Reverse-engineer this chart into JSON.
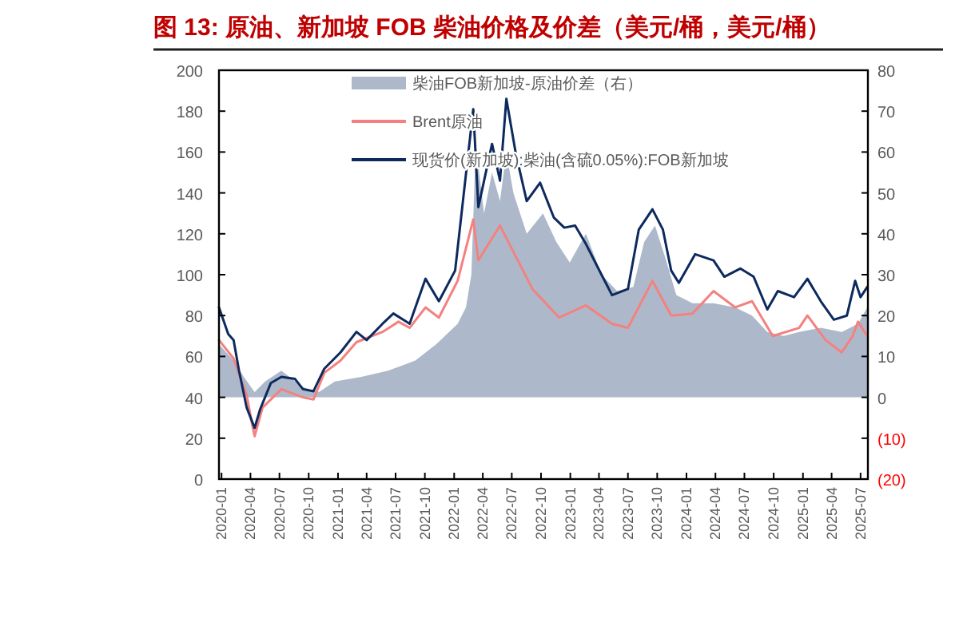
{
  "chart_data": {
    "type": "line",
    "title": "图 13: 原油、新加坡 FOB 柴油价格及价差（美元/桶，美元/桶）",
    "xlim": [
      "2019-12-24",
      "2025-07-24"
    ],
    "xticks": [
      "2020-01",
      "2020-04",
      "2020-07",
      "2020-10",
      "2021-01",
      "2021-04",
      "2021-07",
      "2021-10",
      "2022-01",
      "2022-04",
      "2022-07",
      "2022-10",
      "2023-01",
      "2023-04",
      "2023-07",
      "2023-10",
      "2024-01",
      "2024-04",
      "2024-07",
      "2024-10",
      "2025-01",
      "2025-04",
      "2025-07"
    ],
    "ylim": [
      0,
      200
    ],
    "yticks": [
      0,
      20,
      40,
      60,
      80,
      100,
      120,
      140,
      160,
      180,
      200
    ],
    "y2lim": [
      -20,
      80
    ],
    "y2ticks": [
      {
        "value": -20,
        "label": "(20)"
      },
      {
        "value": -10,
        "label": "(10)"
      },
      0,
      10,
      20,
      30,
      40,
      50,
      60,
      70,
      80
    ],
    "legend": "top",
    "grid": false,
    "series": [
      {
        "name": "柴油FOB新加坡-原油价差（右）",
        "type": "area",
        "axis": "y2",
        "color": "#adb9ca",
        "x": [
          "2019-12-24",
          "2020-02-08",
          "2020-03-11",
          "2020-04-14",
          "2020-05-17",
          "2020-07-07",
          "2020-09-13",
          "2020-11-02",
          "2020-12-22",
          "2021-03-15",
          "2021-06-07",
          "2021-09-01",
          "2021-11-06",
          "2022-01-12",
          "2022-02-07",
          "2022-02-24",
          "2022-03-10",
          "2022-04-05",
          "2022-04-30",
          "2022-05-25",
          "2022-06-14",
          "2022-07-06",
          "2022-08-17",
          "2022-10-07",
          "2022-11-18",
          "2022-12-30",
          "2023-02-19",
          "2023-04-09",
          "2023-05-28",
          "2023-07-18",
          "2023-08-21",
          "2023-09-24",
          "2023-10-27",
          "2023-11-30",
          "2024-01-20",
          "2024-03-26",
          "2024-06-02",
          "2024-07-25",
          "2024-09-11",
          "2024-11-01",
          "2024-12-20",
          "2025-02-26",
          "2025-05-03",
          "2025-06-23",
          "2025-07-22"
        ],
        "values": [
          13,
          9,
          5,
          1.3,
          3.9,
          6.5,
          2.5,
          1.3,
          3.9,
          5,
          6.5,
          9,
          13,
          18,
          22,
          30,
          62,
          45,
          55,
          48,
          60,
          50,
          40,
          45,
          38,
          33,
          40,
          30,
          26,
          27,
          38,
          42,
          34,
          25,
          23,
          23,
          22,
          20,
          16,
          15,
          16,
          17,
          16,
          18,
          22
        ]
      },
      {
        "name": "Brent原油",
        "axis": "y",
        "color": "#f4817f",
        "x": [
          "2019-12-24",
          "2020-02-08",
          "2020-03-20",
          "2020-04-06",
          "2020-04-14",
          "2020-05-09",
          "2020-07-07",
          "2020-09-13",
          "2020-10-16",
          "2020-11-19",
          "2021-01-09",
          "2021-02-28",
          "2021-05-21",
          "2021-07-10",
          "2021-08-14",
          "2021-10-03",
          "2021-11-14",
          "2022-01-12",
          "2022-03-02",
          "2022-03-18",
          "2022-05-25",
          "2022-09-04",
          "2022-11-27",
          "2023-02-19",
          "2023-05-12",
          "2023-07-01",
          "2023-09-16",
          "2023-11-14",
          "2024-01-20",
          "2024-03-26",
          "2024-06-02",
          "2024-07-25",
          "2024-09-28",
          "2024-12-20",
          "2025-01-15",
          "2025-03-13",
          "2025-05-03",
          "2025-06-06",
          "2025-06-23",
          "2025-07-22"
        ],
        "values": [
          68,
          59,
          41,
          27,
          21,
          35,
          44,
          40,
          39,
          52,
          58,
          67,
          72,
          77,
          74,
          84,
          79,
          97,
          127,
          107,
          124,
          93,
          79,
          85,
          76,
          74,
          97,
          80,
          81,
          92,
          84,
          87,
          70,
          74,
          80,
          68,
          62,
          70,
          77,
          70
        ]
      },
      {
        "name": "现货价(新加坡):柴油(含硫0.05%):FOB新加坡",
        "axis": "y",
        "color": "#0d2a5e",
        "x": [
          "2019-12-24",
          "2020-01-22",
          "2020-02-08",
          "2020-02-25",
          "2020-03-20",
          "2020-04-14",
          "2020-05-01",
          "2020-06-04",
          "2020-07-07",
          "2020-08-19",
          "2020-09-13",
          "2020-10-16",
          "2020-11-19",
          "2021-01-09",
          "2021-02-28",
          "2021-04-01",
          "2021-05-21",
          "2021-06-24",
          "2021-08-14",
          "2021-10-03",
          "2021-11-14",
          "2022-01-04",
          "2022-01-12",
          "2022-03-02",
          "2022-03-18",
          "2022-04-30",
          "2022-05-25",
          "2022-06-14",
          "2022-07-14",
          "2022-08-17",
          "2022-09-28",
          "2022-11-10",
          "2022-12-13",
          "2023-01-16",
          "2023-02-19",
          "2023-04-09",
          "2023-05-12",
          "2023-07-01",
          "2023-08-04",
          "2023-09-16",
          "2023-10-19",
          "2023-11-14",
          "2023-12-08",
          "2024-01-28",
          "2024-03-26",
          "2024-04-29",
          "2024-06-18",
          "2024-07-30",
          "2024-09-11",
          "2024-10-14",
          "2024-12-04",
          "2025-01-15",
          "2025-02-26",
          "2025-04-08",
          "2025-05-19",
          "2025-06-14",
          "2025-07-01",
          "2025-07-22"
        ],
        "values": [
          84,
          71,
          68,
          53,
          35,
          25,
          34,
          47,
          50,
          49,
          44,
          43,
          54,
          62,
          72,
          68,
          76,
          81,
          76,
          98,
          87,
          102,
          113,
          181,
          133,
          164,
          146,
          186,
          159,
          136,
          145,
          128,
          123,
          124,
          115,
          100,
          90,
          93,
          122,
          132,
          122,
          102,
          96,
          110,
          107,
          99,
          103,
          99,
          83,
          92,
          89,
          98,
          87,
          78,
          80,
          97,
          89,
          94
        ]
      }
    ]
  }
}
